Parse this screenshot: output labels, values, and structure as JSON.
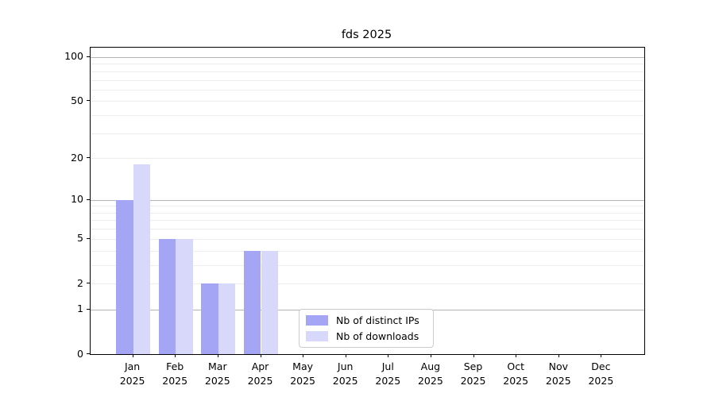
{
  "chart_data": {
    "type": "bar",
    "title": "fds 2025",
    "categories": [
      "Jan 2025",
      "Feb 2025",
      "Mar 2025",
      "Apr 2025",
      "May 2025",
      "Jun 2025",
      "Jul 2025",
      "Aug 2025",
      "Sep 2025",
      "Oct 2025",
      "Nov 2025",
      "Dec 2025"
    ],
    "series": [
      {
        "name": "Nb of distinct IPs",
        "color": "#a5a5f5",
        "values": [
          10,
          5,
          2,
          4,
          0,
          0,
          0,
          0,
          0,
          0,
          0,
          0
        ]
      },
      {
        "name": "Nb of downloads",
        "color": "#d8d8fa",
        "values": [
          18,
          5,
          2,
          4,
          0,
          0,
          0,
          0,
          0,
          0,
          0,
          0
        ]
      }
    ],
    "xlabel": "",
    "ylabel": "",
    "yaxis": {
      "scale": "log1p",
      "ylim": [
        0,
        116
      ],
      "tick_values": [
        0,
        1,
        2,
        5,
        10,
        20,
        50,
        100
      ],
      "tick_labels": [
        "0",
        "1",
        "2",
        "5",
        "10",
        "20",
        "50",
        "100"
      ],
      "major_gridlines": [
        1,
        10,
        100
      ],
      "minor_gridlines": [
        2,
        3,
        4,
        5,
        6,
        7,
        8,
        9,
        20,
        30,
        40,
        50,
        60,
        70,
        80,
        90
      ]
    },
    "grid": true,
    "legend_position": "lower center-right inside plot",
    "colors": {
      "background": "#ffffff",
      "axis": "#000000",
      "major_grid": "#b4b4b4",
      "minor_grid": "#ededed"
    }
  }
}
